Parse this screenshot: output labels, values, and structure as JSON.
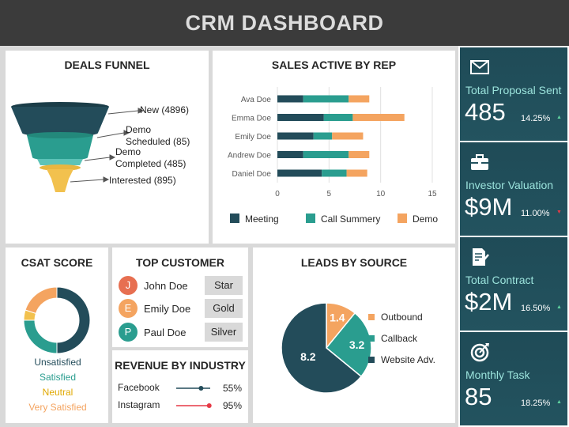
{
  "header": {
    "title": "CRM DASHBOARD"
  },
  "funnel": {
    "title": "DEALS FUNNEL",
    "stages": [
      {
        "label": "New (4896)",
        "color": "#234c5a"
      },
      {
        "label": "Demo\nScheduled (85)",
        "color": "#2a9d8f"
      },
      {
        "label": "Demo\nCompleted (485)",
        "color": "#3fb3a6"
      },
      {
        "label": "Interested (895)",
        "color": "#f2c14e"
      }
    ]
  },
  "sales_by_rep": {
    "title": "SALES ACTIVE BY REP",
    "chart_data": {
      "type": "bar",
      "orientation": "horizontal",
      "stacked": true,
      "categories": [
        "Ava Doe",
        "Emma Doe",
        "Emily Doe",
        "Andrew Doe",
        "Daniel Doe"
      ],
      "series": [
        {
          "name": "Meeting",
          "color": "#234c5a",
          "values": [
            2.5,
            4.5,
            3.5,
            2.5,
            4.3
          ]
        },
        {
          "name": "Call Summery",
          "color": "#2a9d8f",
          "values": [
            4.4,
            2.8,
            1.8,
            4.4,
            2.4
          ]
        },
        {
          "name": "Demo",
          "color": "#f4a460",
          "values": [
            2.0,
            5.0,
            3.0,
            2.0,
            2.0
          ]
        }
      ],
      "xlim": [
        0,
        15
      ],
      "xticks": [
        "0",
        "5",
        "10",
        "15"
      ],
      "grid": true,
      "legend": "bottom"
    }
  },
  "csat": {
    "title": "CSAT SCORE",
    "chart_data": {
      "type": "pie",
      "donut": true,
      "categories": [
        "Unsatisfied",
        "Satisfied",
        "Neutral",
        "Very Satisfied"
      ],
      "values": [
        50,
        25,
        5,
        20
      ],
      "colors": [
        "#234c5a",
        "#2a9d8f",
        "#f2c14e",
        "#f4a460"
      ]
    },
    "legend": [
      {
        "label": "Unsatisfied",
        "color": "#234c5a"
      },
      {
        "label": "Satisfied",
        "color": "#2a9d8f"
      },
      {
        "label": "Neutral",
        "color": "#e0a800"
      },
      {
        "label": "Very Satisfied",
        "color": "#f4a460"
      }
    ]
  },
  "top_customer": {
    "title": "TOP CUSTOMER",
    "rows": [
      {
        "initial": "J",
        "name": "John Doe",
        "tier": "Star",
        "color": "#e76f51"
      },
      {
        "initial": "E",
        "name": "Emily Doe",
        "tier": "Gold",
        "color": "#f4a460"
      },
      {
        "initial": "P",
        "name": "Paul Doe",
        "tier": "Silver",
        "color": "#2a9d8f"
      }
    ]
  },
  "revenue_by_industry": {
    "title": "REVENUE BY INDUSTRY",
    "rows": [
      {
        "name": "Facebook",
        "pct_label": "55%",
        "value": 0.55,
        "color": "#234c5a"
      },
      {
        "name": "Instagram",
        "pct_label": "95%",
        "value": 0.95,
        "color": "#e63946"
      }
    ]
  },
  "leads_by_source": {
    "title": "LEADS BY SOURCE",
    "chart_data": {
      "type": "pie",
      "categories": [
        "Outbound",
        "Callback",
        "Website Adv."
      ],
      "values": [
        1.4,
        3.2,
        8.2
      ],
      "value_labels": [
        "1.4",
        "3.2",
        "8.2"
      ],
      "colors": [
        "#f4a460",
        "#2a9d8f",
        "#234c5a"
      ],
      "legend": "right"
    }
  },
  "kpis": [
    {
      "icon": "envelope-icon",
      "label": "Total Proposal Sent",
      "value": "485",
      "pct": "14.25%",
      "trend": "up",
      "trend_color": "#5fd3a0"
    },
    {
      "icon": "briefcase-icon",
      "label": "Investor Valuation",
      "value": "$9M",
      "pct": "11.00%",
      "trend": "down",
      "trend_color": "#e63946"
    },
    {
      "icon": "contract-icon",
      "label": "Total Contract",
      "value": "$2M",
      "pct": "16.50%",
      "trend": "up",
      "trend_color": "#5fd3a0"
    },
    {
      "icon": "target-icon",
      "label": "Monthly Task",
      "value": "85",
      "pct": "18.25%",
      "trend": "up",
      "trend_color": "#5fd3a0"
    }
  ]
}
